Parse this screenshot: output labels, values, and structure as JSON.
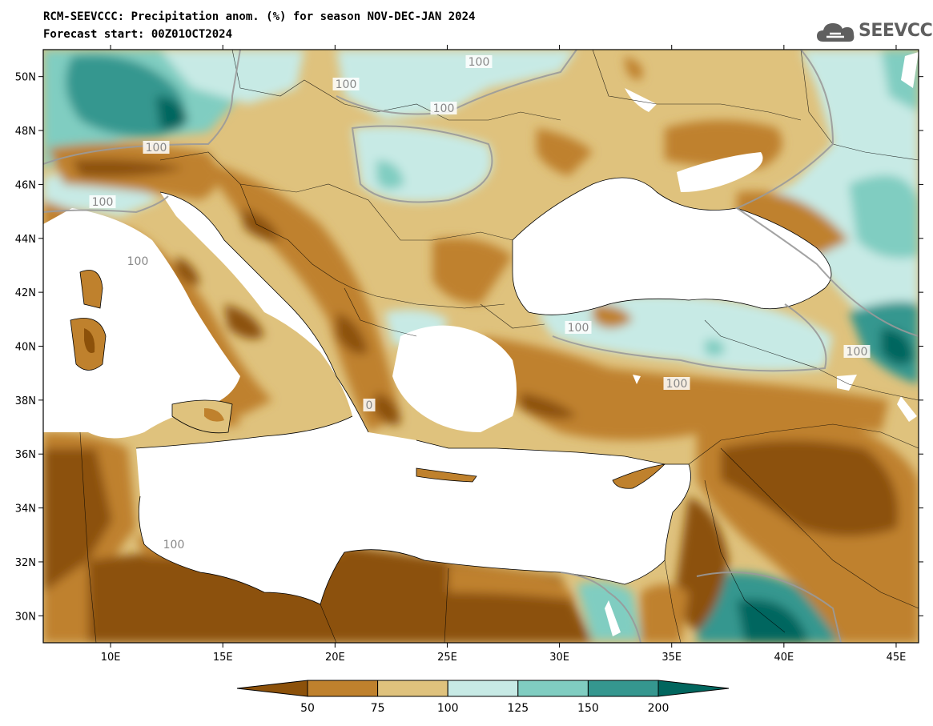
{
  "header": {
    "title_line1": "RCM-SEEVCCC: Precipitation anom. (%) for season NOV-DEC-JAN 2024",
    "title_line2": "Forecast start: 00Z01OCT2024"
  },
  "logo": {
    "text": "SEEVCCC",
    "icon": "cloud-icon"
  },
  "map": {
    "projection": "lat-lon",
    "lon_range": [
      7,
      46
    ],
    "lat_range": [
      29,
      51
    ],
    "lat_ticks": [
      "50N",
      "48N",
      "46N",
      "44N",
      "42N",
      "40N",
      "38N",
      "36N",
      "34N",
      "32N",
      "30N"
    ],
    "lon_ticks": [
      "10E",
      "15E",
      "20E",
      "25E",
      "30E",
      "35E",
      "40E",
      "45E"
    ],
    "contour_labels": [
      "100",
      "100",
      "100",
      "100",
      "100",
      "100",
      "100",
      "100",
      "100",
      "100",
      "0"
    ]
  },
  "colorbar": {
    "colors": [
      "#8c510a",
      "#bf812d",
      "#dfc27d",
      "#c7eae5",
      "#80cdc1",
      "#35978f",
      "#01665e"
    ],
    "tick_labels": [
      "50",
      "75",
      "100",
      "125",
      "150",
      "200"
    ]
  }
}
